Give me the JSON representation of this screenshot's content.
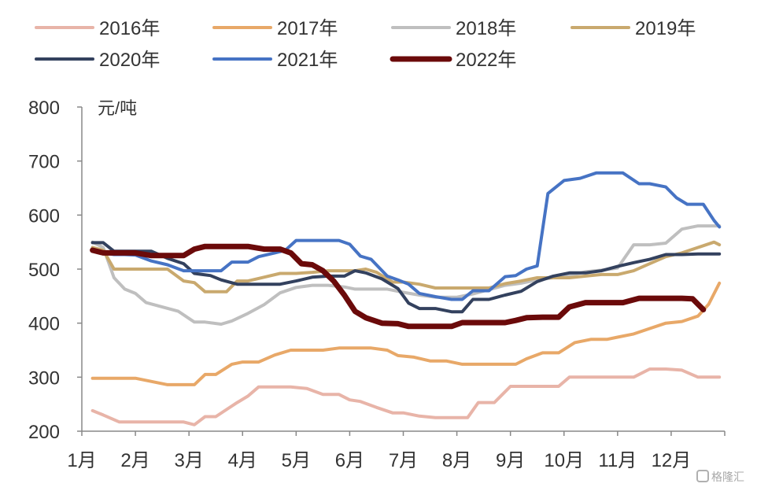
{
  "chart_data": {
    "type": "line",
    "ylabel": "元/吨",
    "ylim": [
      200,
      800
    ],
    "yticks": [
      200,
      300,
      400,
      500,
      600,
      700,
      800
    ],
    "x_range": [
      1,
      13
    ],
    "x_tick_labels": [
      "1月",
      "2月",
      "3月",
      "4月",
      "5月",
      "6月",
      "7月",
      "8月",
      "9月",
      "10月",
      "11月",
      "12月"
    ],
    "grid": false,
    "legend_position": "top",
    "series": [
      {
        "name": "2016年",
        "color": "#E8B4A8",
        "width": 4,
        "x": [
          1.2,
          1.4,
          1.7,
          2.0,
          2.3,
          2.6,
          2.9,
          3.1,
          3.3,
          3.5,
          3.7,
          3.9,
          4.1,
          4.3,
          4.6,
          4.9,
          5.2,
          5.5,
          5.8,
          6.0,
          6.2,
          6.5,
          6.8,
          7.0,
          7.3,
          7.6,
          8.0,
          8.2,
          8.4,
          8.7,
          9.0,
          9.3,
          9.6,
          9.9,
          10.1,
          10.4,
          10.7,
          11.0,
          11.3,
          11.6,
          11.9,
          12.2,
          12.5,
          12.9
        ],
        "y": [
          238,
          230,
          217,
          217,
          217,
          217,
          217,
          212,
          227,
          227,
          240,
          253,
          265,
          282,
          282,
          282,
          279,
          268,
          268,
          258,
          255,
          244,
          234,
          234,
          228,
          225,
          225,
          225,
          253,
          253,
          283,
          283,
          283,
          283,
          300,
          300,
          300,
          300,
          300,
          315,
          315,
          313,
          300,
          300
        ]
      },
      {
        "name": "2017年",
        "color": "#E8A868",
        "width": 4,
        "x": [
          1.2,
          1.5,
          1.8,
          2.0,
          2.3,
          2.6,
          2.9,
          3.1,
          3.3,
          3.5,
          3.8,
          4.0,
          4.3,
          4.6,
          4.9,
          5.2,
          5.5,
          5.8,
          6.0,
          6.2,
          6.4,
          6.7,
          6.9,
          7.2,
          7.5,
          7.8,
          8.1,
          8.4,
          8.8,
          9.1,
          9.3,
          9.6,
          9.9,
          10.2,
          10.5,
          10.8,
          11.0,
          11.3,
          11.6,
          11.9,
          12.2,
          12.5,
          12.7,
          12.9
        ],
        "y": [
          298,
          298,
          298,
          298,
          292,
          286,
          286,
          286,
          305,
          305,
          324,
          328,
          328,
          341,
          350,
          350,
          350,
          354,
          354,
          354,
          354,
          350,
          340,
          337,
          330,
          330,
          324,
          324,
          324,
          324,
          334,
          345,
          345,
          364,
          370,
          370,
          374,
          380,
          390,
          400,
          403,
          413,
          435,
          474
        ]
      },
      {
        "name": "2018年",
        "color": "#BFBFBF",
        "width": 4,
        "x": [
          1.2,
          1.4,
          1.6,
          1.8,
          2.0,
          2.2,
          2.5,
          2.8,
          3.1,
          3.3,
          3.6,
          3.8,
          4.1,
          4.4,
          4.7,
          5.0,
          5.3,
          5.6,
          5.9,
          6.1,
          6.4,
          6.7,
          7.0,
          7.3,
          7.6,
          8.0,
          8.3,
          8.6,
          8.9,
          9.2,
          9.5,
          9.8,
          10.1,
          10.4,
          10.7,
          11.0,
          11.3,
          11.6,
          11.9,
          12.2,
          12.5,
          12.9
        ],
        "y": [
          550,
          540,
          484,
          463,
          455,
          438,
          430,
          422,
          402,
          402,
          398,
          404,
          418,
          434,
          456,
          466,
          470,
          470,
          467,
          463,
          463,
          463,
          457,
          452,
          448,
          448,
          454,
          462,
          470,
          474,
          480,
          484,
          488,
          495,
          498,
          502,
          545,
          545,
          548,
          574,
          580,
          580
        ]
      },
      {
        "name": "2019年",
        "color": "#C9A96E",
        "width": 4,
        "x": [
          1.2,
          1.4,
          1.6,
          1.8,
          2.0,
          2.3,
          2.6,
          2.9,
          3.1,
          3.3,
          3.5,
          3.7,
          3.9,
          4.1,
          4.4,
          4.7,
          5.0,
          5.3,
          5.6,
          5.9,
          6.1,
          6.3,
          6.5,
          6.8,
          7.0,
          7.3,
          7.6,
          8.0,
          8.3,
          8.6,
          8.9,
          9.2,
          9.5,
          9.8,
          10.1,
          10.4,
          10.7,
          11.0,
          11.3,
          11.6,
          11.9,
          12.2,
          12.5,
          12.8,
          12.9
        ],
        "y": [
          540,
          535,
          500,
          500,
          500,
          500,
          500,
          478,
          475,
          458,
          458,
          458,
          478,
          478,
          485,
          492,
          492,
          494,
          497,
          497,
          497,
          500,
          494,
          476,
          476,
          472,
          465,
          465,
          465,
          465,
          473,
          478,
          484,
          484,
          484,
          487,
          490,
          490,
          497,
          510,
          523,
          530,
          540,
          550,
          545
        ]
      },
      {
        "name": "2020年",
        "color": "#33415E",
        "width": 4,
        "x": [
          1.2,
          1.4,
          1.6,
          1.8,
          2.0,
          2.3,
          2.6,
          2.9,
          3.1,
          3.4,
          3.6,
          3.9,
          4.1,
          4.4,
          4.7,
          5.0,
          5.3,
          5.6,
          5.9,
          6.1,
          6.3,
          6.6,
          6.9,
          7.1,
          7.3,
          7.6,
          7.9,
          8.1,
          8.3,
          8.6,
          8.9,
          9.2,
          9.5,
          9.8,
          10.1,
          10.4,
          10.7,
          11.0,
          11.3,
          11.6,
          11.9,
          12.2,
          12.5,
          12.9
        ],
        "y": [
          549,
          549,
          533,
          533,
          533,
          533,
          520,
          510,
          492,
          488,
          480,
          472,
          472,
          472,
          472,
          478,
          485,
          487,
          487,
          497,
          493,
          482,
          464,
          437,
          427,
          427,
          421,
          421,
          444,
          444,
          452,
          459,
          477,
          487,
          493,
          493,
          497,
          505,
          512,
          518,
          527,
          527,
          528,
          528
        ]
      },
      {
        "name": "2021年",
        "color": "#4673C4",
        "width": 4,
        "x": [
          1.2,
          1.4,
          1.6,
          1.8,
          2.0,
          2.3,
          2.6,
          2.9,
          3.1,
          3.3,
          3.6,
          3.8,
          4.1,
          4.3,
          4.6,
          4.8,
          5.0,
          5.2,
          5.5,
          5.8,
          6.0,
          6.2,
          6.4,
          6.7,
          6.9,
          7.1,
          7.3,
          7.6,
          7.9,
          8.1,
          8.3,
          8.6,
          8.9,
          9.1,
          9.3,
          9.5,
          9.7,
          10.0,
          10.3,
          10.6,
          10.9,
          11.1,
          11.4,
          11.6,
          11.9,
          12.1,
          12.3,
          12.6,
          12.8,
          12.9
        ],
        "y": [
          533,
          530,
          527,
          527,
          526,
          515,
          508,
          497,
          497,
          497,
          497,
          513,
          513,
          523,
          530,
          535,
          553,
          553,
          553,
          553,
          546,
          524,
          518,
          487,
          480,
          472,
          455,
          449,
          444,
          444,
          460,
          460,
          486,
          488,
          500,
          506,
          640,
          664,
          668,
          678,
          678,
          678,
          658,
          658,
          652,
          632,
          620,
          620,
          590,
          578
        ]
      },
      {
        "name": "2022年",
        "color": "#6B0A0A",
        "width": 7,
        "x": [
          1.2,
          1.4,
          1.6,
          1.8,
          2.0,
          2.3,
          2.6,
          2.9,
          3.1,
          3.3,
          3.6,
          3.9,
          4.1,
          4.4,
          4.7,
          4.9,
          5.1,
          5.3,
          5.5,
          5.7,
          5.9,
          6.1,
          6.3,
          6.6,
          6.9,
          7.1,
          7.3,
          7.6,
          7.9,
          8.1,
          8.3,
          8.6,
          8.9,
          9.1,
          9.3,
          9.6,
          9.9,
          10.1,
          10.4,
          10.7,
          10.9,
          11.1,
          11.4,
          11.7,
          12.0,
          12.2,
          12.4,
          12.6
        ],
        "y": [
          535,
          530,
          530,
          530,
          530,
          525,
          525,
          525,
          537,
          542,
          542,
          542,
          542,
          537,
          537,
          530,
          510,
          508,
          497,
          478,
          452,
          422,
          410,
          400,
          399,
          394,
          394,
          394,
          394,
          401,
          401,
          401,
          401,
          405,
          410,
          411,
          411,
          430,
          438,
          438,
          438,
          438,
          446,
          446,
          446,
          446,
          445,
          425
        ]
      }
    ]
  },
  "watermark": {
    "text": "格隆汇"
  }
}
